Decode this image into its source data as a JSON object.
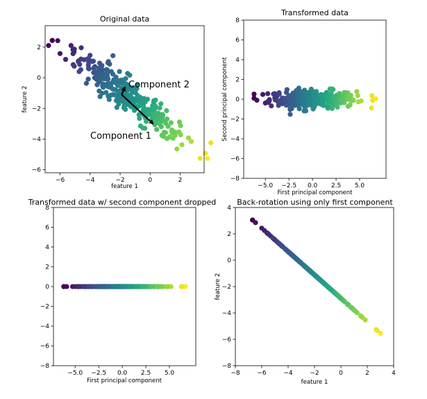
{
  "figure": {
    "colormap": [
      "#440154",
      "#414487",
      "#2a788e",
      "#22a884",
      "#7ad151",
      "#fde725"
    ]
  },
  "chart_data": [
    {
      "id": "original",
      "type": "scatter",
      "title": "Original data",
      "xlabel": "feature 1",
      "ylabel": "feature 2",
      "xlim": [
        -7.0,
        3.6
      ],
      "ylim": [
        -6.2,
        3.4
      ],
      "xticks": [
        -6,
        -4,
        -2,
        0,
        2
      ],
      "yticks": [
        -6,
        -4,
        -2,
        0,
        2
      ],
      "point_model": "two-component gaussian cloud sampled along the principal axes",
      "center": [
        -1.5,
        -1.2
      ],
      "principal_axis": [
        0.8,
        -0.6
      ],
      "first_component_range": [
        -6.2,
        6.7
      ],
      "second_component_std": 0.45,
      "n_points": 300,
      "arrows": [
        {
          "label": "Component 2",
          "from": [
            -1.9,
            -1.1
          ],
          "to": [
            -1.65,
            -0.55
          ]
        },
        {
          "label": "Component 1",
          "from": [
            -1.9,
            -1.1
          ],
          "to": [
            0.25,
            -3.05
          ]
        }
      ],
      "annotations": [
        {
          "text": "Component 2",
          "x": -1.6,
          "y": -0.4
        },
        {
          "text": "Component 1",
          "x": -4.3,
          "y": -3.9
        }
      ]
    },
    {
      "id": "transformed",
      "type": "scatter",
      "title": "Transformed data",
      "xlabel": "First principal component",
      "ylabel": "Second principal component",
      "xlim": [
        -7.3,
        7.8
      ],
      "ylim": [
        -8,
        8
      ],
      "xticks": [
        -5.0,
        -2.5,
        0.0,
        2.5,
        5.0
      ],
      "xtick_labels": [
        "−5.0",
        "−2.5",
        "0.0",
        "2.5",
        "5.0"
      ],
      "yticks": [
        -8,
        -6,
        -4,
        -2,
        0,
        2,
        4,
        6,
        8
      ],
      "first_component_range": [
        -6.2,
        6.7
      ],
      "second_component_std": 0.45
    },
    {
      "id": "dropped",
      "type": "scatter",
      "title": "Transformed data w/ second component dropped",
      "xlabel": "First principal component",
      "ylabel": "",
      "xlim": [
        -7.3,
        7.8
      ],
      "ylim": [
        -8,
        8
      ],
      "xticks": [
        -5.0,
        -2.5,
        0.0,
        2.5,
        5.0
      ],
      "xtick_labels": [
        "−5.0",
        "−2.5",
        "0.0",
        "2.5",
        "5.0"
      ],
      "yticks": [
        -8,
        -6,
        -4,
        -2,
        0,
        2,
        4,
        6,
        8
      ],
      "first_component_range": [
        -6.2,
        6.7
      ],
      "second_component_value": 0
    },
    {
      "id": "backrot",
      "type": "scatter",
      "title": "Back-rotation using only first component",
      "xlabel": "feature 1",
      "ylabel": "feature 2",
      "xlim": [
        -8,
        4
      ],
      "ylim": [
        -8,
        4
      ],
      "xticks": [
        -8,
        -6,
        -4,
        -2,
        0,
        2,
        4
      ],
      "yticks": [
        -8,
        -6,
        -4,
        -2,
        0,
        2,
        4
      ],
      "line_start": [
        -6.7,
        3.05
      ],
      "line_end": [
        3.0,
        -5.55
      ],
      "center": [
        -1.5,
        -1.2
      ],
      "principal_axis": [
        0.8,
        -0.6
      ]
    }
  ]
}
